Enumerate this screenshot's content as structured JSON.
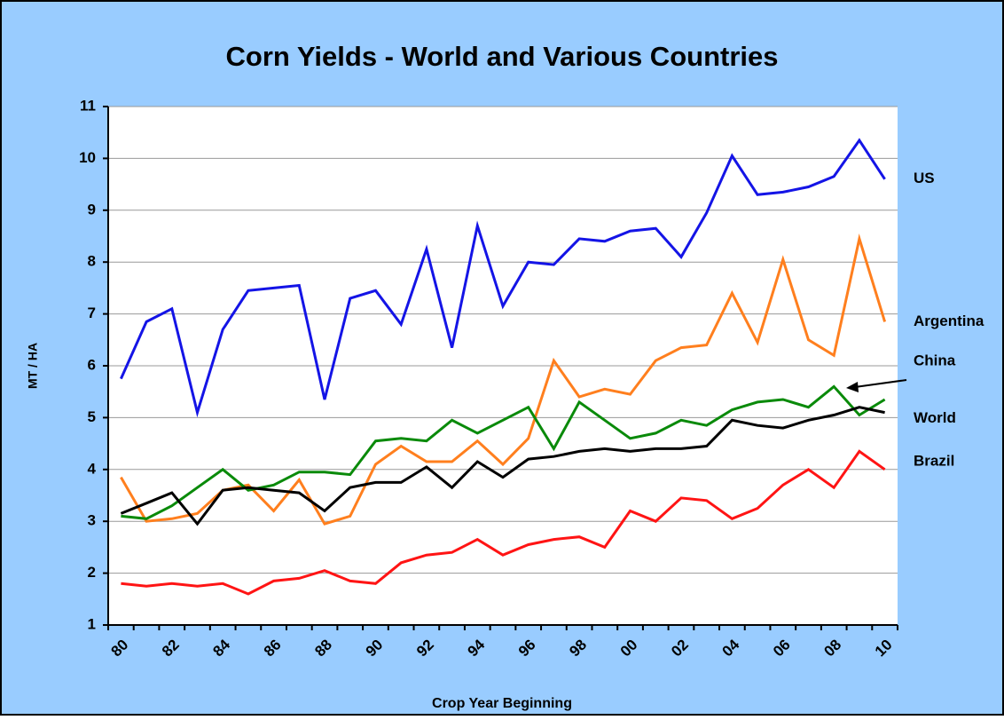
{
  "chart_data": {
    "type": "line",
    "title": "Corn Yields - World and Various Countries",
    "x_label": "Crop Year Beginning",
    "y_label": "MT / HA",
    "categories": [
      "80",
      null,
      "82",
      null,
      "84",
      null,
      "86",
      null,
      "88",
      null,
      "90",
      null,
      "92",
      null,
      "94",
      null,
      "96",
      null,
      "98",
      null,
      "00",
      null,
      "02",
      null,
      "04",
      null,
      "06",
      null,
      "08",
      null,
      "10"
    ],
    "ylim": [
      1,
      11
    ],
    "yticks": [
      1,
      2,
      3,
      4,
      5,
      6,
      7,
      8,
      9,
      10,
      11
    ],
    "grid": true,
    "series": [
      {
        "name": "US",
        "color": "#1414e6",
        "values": [
          5.75,
          6.85,
          7.1,
          5.1,
          6.7,
          7.45,
          7.5,
          7.55,
          5.35,
          7.3,
          7.45,
          6.8,
          8.25,
          6.35,
          8.7,
          7.15,
          8.0,
          7.95,
          8.45,
          8.4,
          8.6,
          8.65,
          8.1,
          8.95,
          10.05,
          9.3,
          9.35,
          9.45,
          9.65,
          10.35,
          9.6
        ]
      },
      {
        "name": "Argentina",
        "color": "#ff7f1e",
        "values": [
          3.85,
          3.0,
          3.05,
          3.15,
          3.6,
          3.7,
          3.2,
          3.8,
          2.95,
          3.1,
          4.1,
          4.45,
          4.15,
          4.15,
          4.55,
          4.1,
          4.6,
          6.1,
          5.4,
          5.55,
          5.45,
          6.1,
          6.35,
          6.4,
          7.4,
          6.45,
          8.05,
          6.5,
          6.2,
          8.45,
          6.85
        ]
      },
      {
        "name": "China",
        "color": "#0a8a0a",
        "values": [
          3.1,
          3.05,
          3.3,
          3.65,
          4.0,
          3.6,
          3.7,
          3.95,
          3.95,
          3.9,
          4.55,
          4.6,
          4.55,
          4.95,
          4.7,
          4.95,
          5.2,
          4.4,
          5.3,
          4.95,
          4.6,
          4.7,
          4.95,
          4.85,
          5.15,
          5.3,
          5.35,
          5.2,
          5.6,
          5.05,
          5.35
        ]
      },
      {
        "name": "World",
        "color": "#000000",
        "values": [
          3.15,
          3.35,
          3.55,
          2.95,
          3.6,
          3.65,
          3.6,
          3.55,
          3.2,
          3.65,
          3.75,
          3.75,
          4.05,
          3.65,
          4.15,
          3.85,
          4.2,
          4.25,
          4.35,
          4.4,
          4.35,
          4.4,
          4.4,
          4.45,
          4.95,
          4.85,
          4.8,
          4.95,
          5.05,
          5.2,
          5.1
        ]
      },
      {
        "name": "Brazil",
        "color": "#ff1414",
        "values": [
          1.8,
          1.75,
          1.8,
          1.75,
          1.8,
          1.6,
          1.85,
          1.9,
          2.05,
          1.85,
          1.8,
          2.2,
          2.35,
          2.4,
          2.65,
          2.35,
          2.55,
          2.65,
          2.7,
          2.5,
          3.2,
          3.0,
          3.45,
          3.4,
          3.05,
          3.25,
          3.7,
          4.0,
          3.65,
          4.35,
          4.0
        ]
      }
    ]
  }
}
